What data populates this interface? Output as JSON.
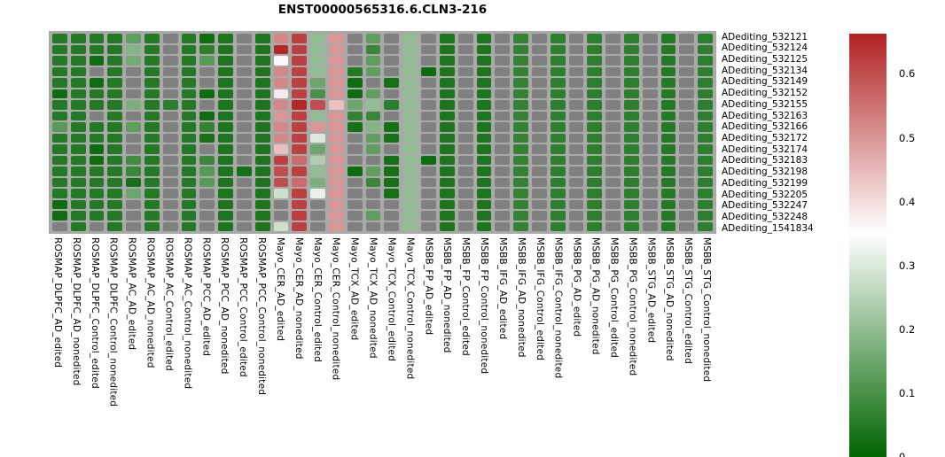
{
  "chart_data": {
    "type": "heatmap",
    "title": "ENST00000565316.6.CLN3-216",
    "legend_position": "right",
    "vmin": 0,
    "vmax": 0.663,
    "white_point": 0.35,
    "colorbar_ticks": [
      0.6,
      0.5,
      0.4,
      0.3,
      0.2,
      0.1,
      0
    ],
    "colors": {
      "low": "#006400",
      "mid": "#ffffff",
      "high": "#b22222",
      "na": "#808080",
      "grid_bg": "#a9a9a9",
      "text": "#000000"
    },
    "rows": [
      "ADediting_532121",
      "ADediting_532124",
      "ADediting_532125",
      "ADediting_532134",
      "ADediting_532149",
      "ADediting_532152",
      "ADediting_532155",
      "ADediting_532163",
      "ADediting_532166",
      "ADediting_532172",
      "ADediting_532174",
      "ADediting_532183",
      "ADediting_532198",
      "ADediting_532199",
      "ADediting_532205",
      "ADediting_532247",
      "ADediting_532248",
      "ADediting_1541834"
    ],
    "columns": [
      "ROSMAP_DLPFC_AD_edited",
      "ROSMAP_DLPFC_AD_nonedited",
      "ROSMAP_DLPFC_Control_edited",
      "ROSMAP_DLPFC_Control_nonedited",
      "ROSMAP_AC_AD_edited",
      "ROSMAP_AC_AD_nonedited",
      "ROSMAP_AC_Control_edited",
      "ROSMAP_AC_Control_nonedited",
      "ROSMAP_PCC_AD_edited",
      "ROSMAP_PCC_AD_nonedited",
      "ROSMAP_PCC_Control_edited",
      "ROSMAP_PCC_Control_nonedited",
      "Mayo_CER_AD_edited",
      "Mayo_CER_AD_nonedited",
      "Mayo_CER_Control_edited",
      "Mayo_CER_Control_nonedited",
      "Mayo_TCX_AD_edited",
      "Mayo_TCX_AD_nonedited",
      "Mayo_TCX_Control_edited",
      "Mayo_TCX_Control_nonedited",
      "MSBB_FP_AD_edited",
      "MSBB_FP_AD_nonedited",
      "MSBB_FP_Control_edited",
      "MSBB_FP_Control_nonedited",
      "MSBB_IFG_AD_edited",
      "MSBB_IFG_AD_nonedited",
      "MSBB_IFG_Control_edited",
      "MSBB_IFG_Control_nonedited",
      "MSBB_PG_AD_edited",
      "MSBB_PG_AD_nonedited",
      "MSBB_PG_Control_edited",
      "MSBB_PG_Control_nonedited",
      "MSBB_STG_AD_edited",
      "MSBB_STG_AD_nonedited",
      "MSBB_STG_Control_edited",
      "MSBB_STG_Control_nonedited"
    ],
    "values": [
      [
        0.05,
        0.05,
        0.05,
        0.05,
        0.13,
        0.05,
        null,
        0.05,
        0.02,
        0.04,
        null,
        0.04,
        0.52,
        0.62,
        0.2,
        0.5,
        null,
        0.13,
        null,
        0.2,
        null,
        0.04,
        null,
        0.04,
        null,
        0.07,
        null,
        0.06,
        null,
        0.06,
        null,
        0.06,
        null,
        0.05,
        null,
        0.06
      ],
      [
        0.05,
        0.05,
        0.05,
        0.05,
        0.18,
        0.05,
        null,
        0.05,
        0.06,
        0.04,
        null,
        0.04,
        0.655,
        0.62,
        0.2,
        0.5,
        null,
        0.08,
        null,
        0.2,
        null,
        0.04,
        null,
        0.04,
        null,
        0.07,
        null,
        0.06,
        null,
        0.06,
        null,
        0.06,
        null,
        0.05,
        null,
        0.06
      ],
      [
        0.05,
        0.05,
        0.02,
        0.05,
        0.16,
        0.05,
        null,
        0.05,
        0.12,
        0.04,
        null,
        0.04,
        0.36,
        0.62,
        0.2,
        0.5,
        null,
        0.13,
        null,
        0.2,
        null,
        0.04,
        null,
        0.04,
        null,
        0.07,
        null,
        0.06,
        null,
        0.06,
        null,
        0.06,
        null,
        0.05,
        null,
        0.06
      ],
      [
        0.05,
        0.05,
        null,
        0.05,
        null,
        0.05,
        null,
        0.05,
        null,
        0.04,
        null,
        0.04,
        0.52,
        0.62,
        0.2,
        0.5,
        0.05,
        0.13,
        null,
        0.2,
        0.02,
        0.04,
        null,
        0.04,
        null,
        0.07,
        null,
        0.06,
        null,
        0.06,
        null,
        0.06,
        null,
        0.05,
        null,
        0.06
      ],
      [
        0.05,
        0.05,
        0.02,
        0.05,
        null,
        0.05,
        null,
        0.05,
        null,
        0.04,
        null,
        0.04,
        0.52,
        0.62,
        0.15,
        0.5,
        0.02,
        null,
        0.03,
        0.2,
        null,
        0.04,
        null,
        0.04,
        null,
        0.07,
        null,
        0.06,
        null,
        0.06,
        null,
        0.06,
        null,
        0.05,
        null,
        0.06
      ],
      [
        0.02,
        0.05,
        0.05,
        0.05,
        null,
        0.05,
        null,
        0.05,
        0.02,
        0.04,
        null,
        0.04,
        0.38,
        0.62,
        0.1,
        0.5,
        0.02,
        0.13,
        null,
        0.2,
        null,
        0.04,
        null,
        0.04,
        null,
        0.07,
        null,
        0.06,
        null,
        0.06,
        null,
        0.06,
        null,
        0.05,
        null,
        0.06
      ],
      [
        0.05,
        0.05,
        0.05,
        0.05,
        0.17,
        0.05,
        0.06,
        0.05,
        null,
        0.04,
        null,
        0.04,
        0.52,
        0.655,
        0.6,
        0.44,
        0.15,
        0.2,
        0.06,
        0.2,
        null,
        0.04,
        null,
        0.04,
        null,
        0.07,
        null,
        0.06,
        null,
        0.06,
        null,
        0.06,
        null,
        0.05,
        null,
        0.06
      ],
      [
        0.05,
        0.05,
        null,
        0.05,
        null,
        0.05,
        null,
        0.05,
        0.02,
        0.04,
        null,
        0.04,
        0.5,
        0.62,
        0.2,
        0.5,
        0.07,
        0.08,
        null,
        0.2,
        null,
        0.04,
        null,
        0.04,
        null,
        0.07,
        null,
        0.06,
        null,
        0.06,
        null,
        0.06,
        null,
        0.05,
        null,
        0.06
      ],
      [
        0.12,
        0.05,
        0.05,
        0.05,
        0.13,
        0.05,
        null,
        0.05,
        0.07,
        0.04,
        null,
        0.04,
        0.52,
        0.62,
        0.5,
        0.5,
        0.03,
        0.18,
        0.03,
        0.2,
        null,
        0.04,
        null,
        0.04,
        null,
        0.07,
        null,
        0.06,
        null,
        0.06,
        null,
        0.06,
        null,
        0.05,
        null,
        0.06
      ],
      [
        0.05,
        0.05,
        0.05,
        0.05,
        null,
        0.05,
        null,
        0.05,
        0.03,
        0.04,
        null,
        0.04,
        0.52,
        0.62,
        0.3,
        0.5,
        null,
        0.13,
        0.03,
        0.2,
        null,
        0.04,
        null,
        0.04,
        null,
        0.07,
        null,
        0.06,
        null,
        0.06,
        null,
        0.06,
        null,
        0.05,
        null,
        0.06
      ],
      [
        0.05,
        0.05,
        0.02,
        0.05,
        null,
        0.05,
        null,
        0.05,
        null,
        0.04,
        null,
        0.04,
        0.44,
        0.62,
        0.15,
        0.5,
        null,
        0.13,
        null,
        0.2,
        null,
        0.04,
        null,
        0.04,
        null,
        0.07,
        null,
        0.06,
        null,
        0.06,
        null,
        0.06,
        null,
        0.05,
        null,
        0.06
      ],
      [
        0.05,
        0.05,
        0.02,
        0.05,
        0.09,
        0.05,
        null,
        0.05,
        0.08,
        0.04,
        null,
        0.04,
        0.62,
        0.56,
        0.24,
        0.5,
        null,
        null,
        0.03,
        0.2,
        0.02,
        0.04,
        null,
        0.04,
        null,
        0.07,
        null,
        0.06,
        null,
        0.06,
        null,
        0.06,
        null,
        0.05,
        null,
        0.06
      ],
      [
        0.05,
        0.05,
        0.05,
        0.05,
        0.08,
        0.05,
        null,
        0.05,
        0.12,
        0.04,
        0.03,
        0.04,
        0.6,
        0.62,
        0.2,
        0.5,
        0.02,
        0.13,
        0.03,
        0.2,
        null,
        0.04,
        null,
        0.04,
        null,
        0.07,
        null,
        0.06,
        null,
        0.06,
        null,
        0.06,
        null,
        0.05,
        null,
        0.06
      ],
      [
        0.05,
        0.05,
        0.05,
        0.05,
        0.03,
        0.05,
        null,
        0.05,
        0.12,
        0.04,
        null,
        0.04,
        0.6,
        0.56,
        0.17,
        0.5,
        null,
        0.08,
        0.03,
        0.2,
        null,
        0.04,
        null,
        0.04,
        null,
        0.07,
        null,
        0.06,
        null,
        0.06,
        null,
        0.06,
        null,
        0.05,
        null,
        0.06
      ],
      [
        0.05,
        0.05,
        0.05,
        0.05,
        0.15,
        0.05,
        null,
        0.05,
        null,
        0.04,
        null,
        0.04,
        0.28,
        0.62,
        0.32,
        0.5,
        null,
        null,
        0.03,
        0.2,
        null,
        0.04,
        null,
        0.04,
        null,
        0.07,
        null,
        0.06,
        null,
        0.06,
        null,
        0.06,
        null,
        0.05,
        null,
        0.06
      ],
      [
        0.02,
        0.05,
        0.05,
        0.05,
        null,
        0.05,
        null,
        0.05,
        null,
        0.04,
        null,
        0.04,
        null,
        0.62,
        null,
        0.5,
        null,
        null,
        null,
        0.2,
        null,
        0.04,
        null,
        0.04,
        null,
        0.07,
        null,
        0.06,
        null,
        0.06,
        null,
        0.06,
        null,
        0.05,
        null,
        0.06
      ],
      [
        0.02,
        0.05,
        0.05,
        0.05,
        null,
        0.05,
        null,
        0.05,
        null,
        0.04,
        null,
        0.04,
        null,
        0.62,
        null,
        0.5,
        null,
        0.13,
        null,
        0.2,
        null,
        0.04,
        null,
        0.04,
        null,
        0.07,
        null,
        0.06,
        null,
        0.06,
        null,
        0.06,
        null,
        0.05,
        null,
        0.06
      ],
      [
        null,
        0.05,
        null,
        0.05,
        null,
        0.05,
        null,
        0.05,
        null,
        0.04,
        null,
        0.04,
        0.28,
        0.62,
        null,
        0.5,
        null,
        null,
        null,
        0.2,
        null,
        0.04,
        null,
        0.04,
        null,
        0.07,
        null,
        0.06,
        null,
        0.06,
        null,
        0.06,
        null,
        0.05,
        null,
        0.06
      ]
    ]
  }
}
